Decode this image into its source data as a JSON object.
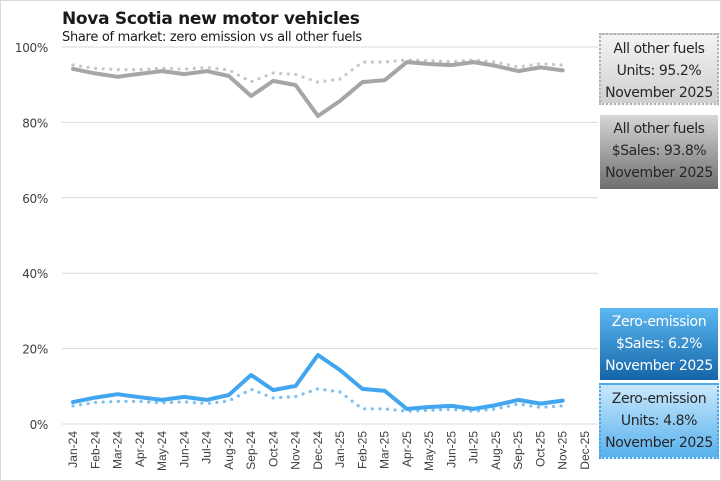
{
  "chart_data": {
    "type": "line",
    "title": "Nova Scotia new motor vehicles",
    "subtitle": "Share of market: zero emission vs all other fuels",
    "xlabel": "",
    "ylabel": "",
    "ylim": [
      0,
      100
    ],
    "yticks": [
      "0%",
      "20%",
      "40%",
      "60%",
      "80%",
      "100%"
    ],
    "ytick_values": [
      0,
      20,
      40,
      60,
      80,
      100
    ],
    "grid": true,
    "categories": [
      "Jan-24",
      "Feb-24",
      "Mar-24",
      "Apr-24",
      "May-24",
      "Jun-24",
      "Jul-24",
      "Aug-24",
      "Sep-24",
      "Oct-24",
      "Nov-24",
      "Dec-24",
      "Jan-25",
      "Feb-25",
      "Mar-25",
      "Apr-25",
      "May-25",
      "Jun-25",
      "Jul-25",
      "Aug-25",
      "Sep-25",
      "Oct-25",
      "Nov-25",
      "Dec-25"
    ],
    "series": [
      {
        "name": "All other fuels $Sales",
        "style": "solid",
        "color": "#a6a6a6",
        "values": [
          94.2,
          93.0,
          92.1,
          92.9,
          93.6,
          92.8,
          93.6,
          92.3,
          87.0,
          91.0,
          89.9,
          81.7,
          85.7,
          90.7,
          91.2,
          96.0,
          95.5,
          95.2,
          96.0,
          95.0,
          93.6,
          94.6,
          93.8,
          null
        ]
      },
      {
        "name": "All other fuels Units",
        "style": "dotted",
        "color": "#c8c8c8",
        "values": [
          95.2,
          94.3,
          94.0,
          94.0,
          94.4,
          94.1,
          94.6,
          93.9,
          90.8,
          93.1,
          92.7,
          90.7,
          91.5,
          96.0,
          96.0,
          96.6,
          96.4,
          96.1,
          96.6,
          96.0,
          94.7,
          95.6,
          95.2,
          null
        ]
      },
      {
        "name": "Zero-emission $Sales",
        "style": "solid",
        "color": "#42a5f0",
        "values": [
          5.8,
          7.0,
          7.9,
          7.1,
          6.4,
          7.2,
          6.4,
          7.7,
          13.0,
          9.0,
          10.1,
          18.3,
          14.3,
          9.3,
          8.8,
          4.0,
          4.5,
          4.8,
          4.0,
          5.0,
          6.4,
          5.4,
          6.2,
          null
        ]
      },
      {
        "name": "Zero-emission Units",
        "style": "dotted",
        "color": "#7cc1f2",
        "values": [
          4.8,
          5.7,
          6.0,
          6.0,
          5.6,
          5.9,
          5.4,
          6.1,
          9.2,
          6.9,
          7.3,
          9.3,
          8.5,
          4.0,
          4.0,
          3.4,
          3.6,
          3.9,
          3.4,
          4.0,
          5.3,
          4.4,
          4.8,
          null
        ]
      }
    ],
    "annotations": {
      "units_other": {
        "line1": "All other fuels",
        "line2": "Units: 95.2%",
        "line3": "November 2025"
      },
      "sales_other": {
        "line1": "All other fuels",
        "line2": "$Sales: 93.8%",
        "line3": "November 2025"
      },
      "sales_ze": {
        "line1": "Zero-emission",
        "line2": "$Sales: 6.2%",
        "line3": "November 2025"
      },
      "units_ze": {
        "line1": "Zero-emission",
        "line2": "Units: 4.8%",
        "line3": "November 2025"
      }
    }
  }
}
